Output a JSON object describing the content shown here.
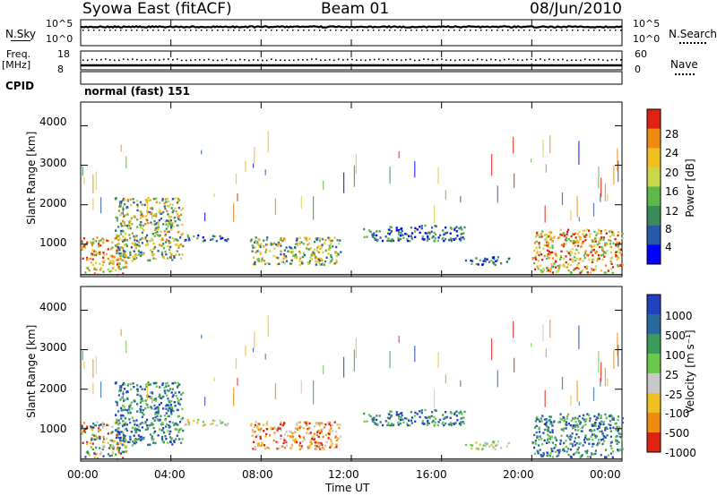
{
  "header": {
    "station": "Syowa East (fitACF)",
    "beam": "Beam 01",
    "date": "08/Jun/2010"
  },
  "top_panels": {
    "nsky_label": "N.Sky",
    "nsearch_label": "N.Search",
    "nsky_ticks": [
      "10^5",
      "10^0"
    ],
    "nsearch_ticks": [
      "10^5",
      "10^0"
    ],
    "freq_label": "Freq.",
    "freq_unit": "[MHz]",
    "freq_ticks": [
      "18",
      "8"
    ],
    "nave_label": "Nave",
    "nave_ticks": [
      "60",
      "0"
    ],
    "cpid_label": "CPID",
    "cpid_value": "normal (fast) 151"
  },
  "x_axis": {
    "label": "Time UT",
    "ticks": [
      "00:00",
      "04:00",
      "08:00",
      "12:00",
      "16:00",
      "20:00",
      "00:00"
    ]
  },
  "chart_data": [
    {
      "type": "heatmap",
      "name": "power",
      "ylabel": "Slant Range [km]",
      "y_ticks": [
        "1000",
        "2000",
        "3000",
        "4000"
      ],
      "ylim": [
        180,
        4600
      ],
      "xlim_hours": [
        0,
        24
      ],
      "colorbar_label": "Power [dB]",
      "colorbar_ticks": [
        "4",
        "8",
        "12",
        "16",
        "20",
        "24",
        "28"
      ],
      "colorbar_colors": [
        "#0000ff",
        "#2858a8",
        "#3a8a5a",
        "#5cb84a",
        "#c8d84a",
        "#f0c020",
        "#f08a10",
        "#e02010"
      ],
      "echo_regions": [
        {
          "t": [
            0,
            2
          ],
          "r": [
            250,
            1200
          ],
          "level": "high"
        },
        {
          "t": [
            1.5,
            4.5
          ],
          "r": [
            600,
            2200
          ],
          "level": "mid"
        },
        {
          "t": [
            4.5,
            6.5
          ],
          "r": [
            1100,
            1250
          ],
          "level": "low"
        },
        {
          "t": [
            7.5,
            11.5
          ],
          "r": [
            500,
            1200
          ],
          "level": "mid"
        },
        {
          "t": [
            12.5,
            17
          ],
          "r": [
            1100,
            1500
          ],
          "level": "low"
        },
        {
          "t": [
            17,
            19
          ],
          "r": [
            500,
            700
          ],
          "level": "low"
        },
        {
          "t": [
            20,
            24
          ],
          "r": [
            300,
            1400
          ],
          "level": "high"
        }
      ]
    },
    {
      "type": "heatmap",
      "name": "velocity",
      "ylabel": "Slant Range [km]",
      "y_ticks": [
        "1000",
        "2000",
        "3000",
        "4000"
      ],
      "ylim": [
        180,
        4600
      ],
      "xlim_hours": [
        0,
        24
      ],
      "colorbar_label": "Velocity [m s⁻¹]",
      "colorbar_ticks": [
        "1000",
        "500",
        "100",
        "25",
        "-25",
        "-100",
        "-500",
        "-1000"
      ],
      "colorbar_colors": [
        "#2040c0",
        "#2a6aa0",
        "#3a9a5a",
        "#6ac84a",
        "#c8c8c8",
        "#f0c020",
        "#f08a10",
        "#e02010"
      ],
      "echo_regions": [
        {
          "t": [
            0,
            2
          ],
          "r": [
            250,
            1200
          ],
          "level": "mixed"
        },
        {
          "t": [
            1.5,
            4.5
          ],
          "r": [
            600,
            2200
          ],
          "level": "toward"
        },
        {
          "t": [
            4.5,
            6.5
          ],
          "r": [
            1100,
            1250
          ],
          "level": "zero"
        },
        {
          "t": [
            7.5,
            11.5
          ],
          "r": [
            500,
            1200
          ],
          "level": "away"
        },
        {
          "t": [
            12.5,
            17
          ],
          "r": [
            1100,
            1500
          ],
          "level": "toward"
        },
        {
          "t": [
            17,
            19
          ],
          "r": [
            500,
            700
          ],
          "level": "zero"
        },
        {
          "t": [
            20,
            24
          ],
          "r": [
            300,
            1400
          ],
          "level": "toward"
        }
      ]
    }
  ]
}
